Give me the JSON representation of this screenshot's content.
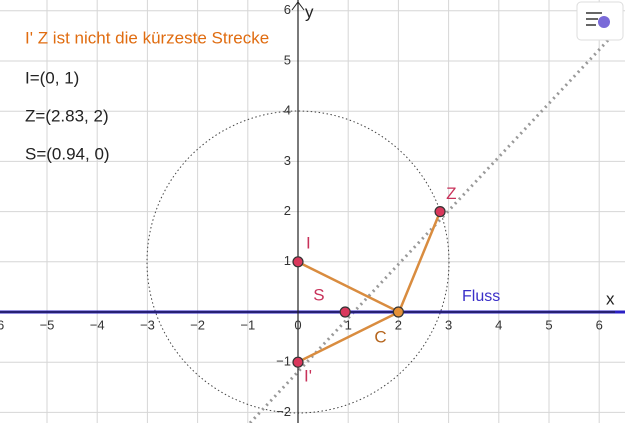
{
  "title": "I' Z ist nicht die kürzeste Strecke",
  "info": [
    "I=(0, 1)",
    "Z=(2.83, 2)",
    "S=(0.94, 0)"
  ],
  "axes": {
    "xlabel": "x",
    "ylabel": "y",
    "xticks": [
      {
        "value": -6,
        "label": "−6"
      },
      {
        "value": -5,
        "label": "−5"
      },
      {
        "value": -4,
        "label": "−4"
      },
      {
        "value": -3,
        "label": "−3"
      },
      {
        "value": -2,
        "label": "−2"
      },
      {
        "value": -1,
        "label": "−1"
      },
      0,
      1,
      2,
      3,
      4,
      5,
      6
    ],
    "yticks": [
      {
        "value": -2,
        "label": "−2"
      },
      {
        "value": -1,
        "label": "−1"
      },
      1,
      2,
      3,
      4,
      5,
      6
    ]
  },
  "line_label": "Fluss",
  "points": [
    {
      "label": "I",
      "x": 0,
      "y": 1,
      "color": "#d9385c"
    },
    {
      "label": "Z",
      "x": 2.83,
      "y": 2,
      "color": "#d9385c"
    },
    {
      "label": "S",
      "x": 0.94,
      "y": 0,
      "color": "#d9385c"
    },
    {
      "label": "C",
      "x": 2,
      "y": 0,
      "color": "#e69138"
    },
    {
      "label": "I'",
      "x": 0,
      "y": -1,
      "color": "#d9385c"
    }
  ]
}
